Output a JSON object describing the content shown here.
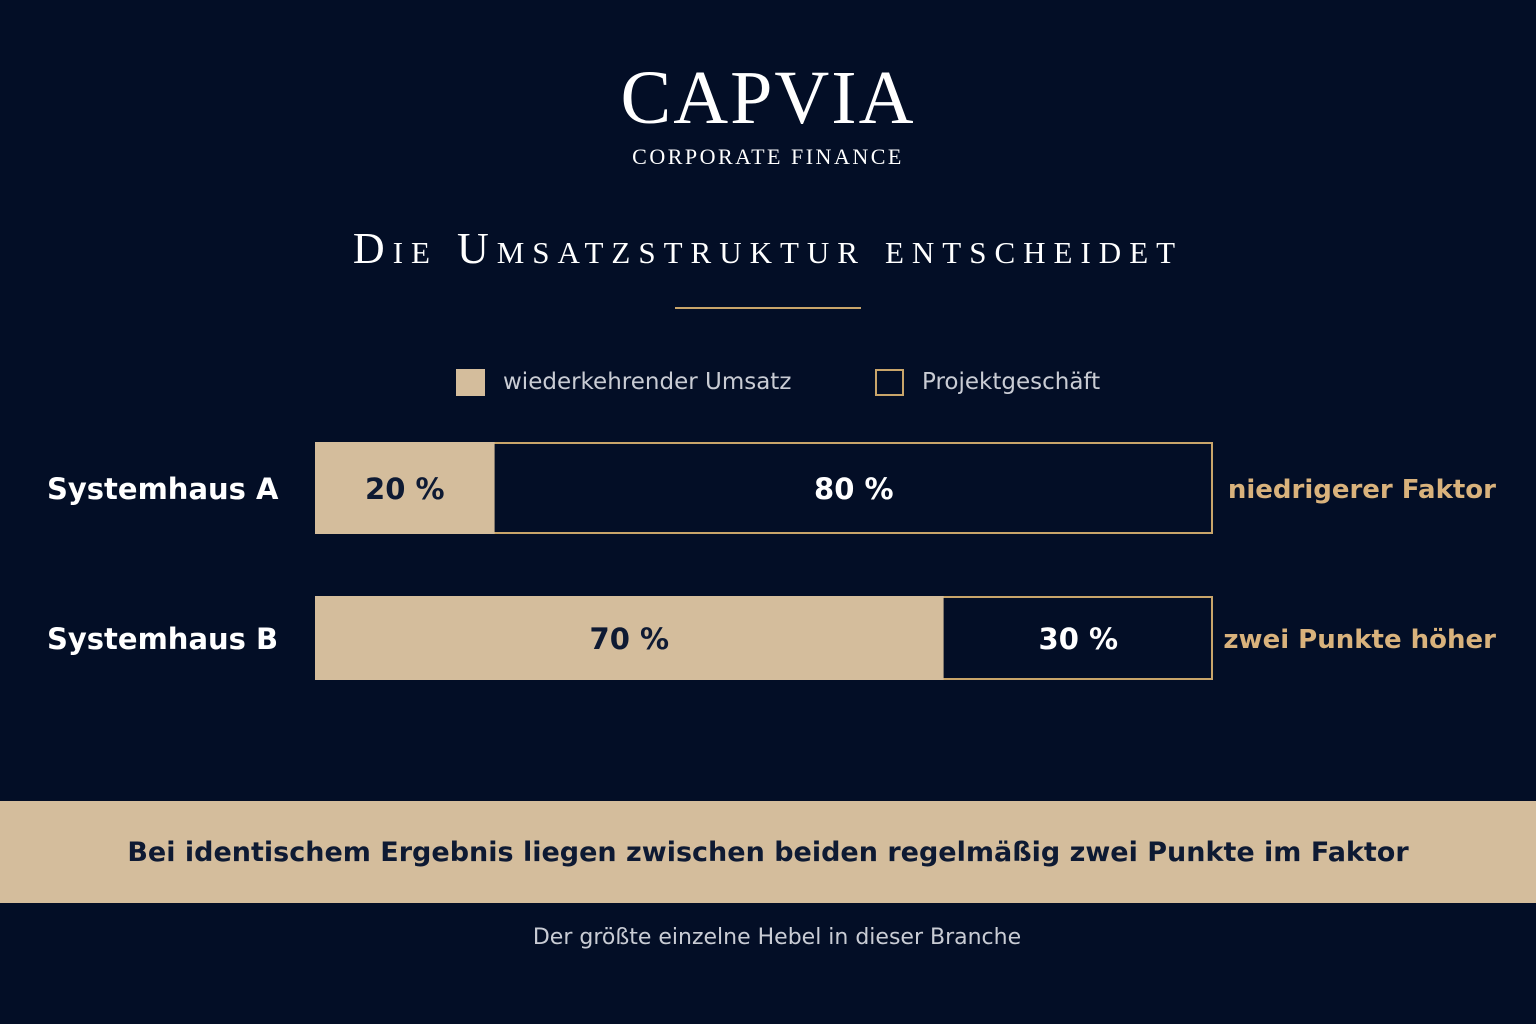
{
  "brand": {
    "name": "CAPVIA",
    "subtitle": "CORPORATE FINANCE"
  },
  "colors": {
    "background": "#030e26",
    "recurring": "#d4bd9c",
    "accent": "#c9a56a",
    "label_accent": "#d9b27c",
    "dark_text": "#0e1a33"
  },
  "chart_data": {
    "type": "bar",
    "orientation": "horizontal",
    "stacked": true,
    "title": "Die Umsatzstruktur entscheidet",
    "categories": [
      "Systemhaus A",
      "Systemhaus B"
    ],
    "series": [
      {
        "name": "wiederkehrender Umsatz",
        "values": [
          20,
          70
        ],
        "labels": [
          "20 %",
          "70 %"
        ]
      },
      {
        "name": "Projektgeschäft",
        "values": [
          80,
          30
        ],
        "labels": [
          "80 %",
          "30 %"
        ]
      }
    ],
    "annotations": [
      "niedrigerer Faktor",
      "zwei Punkte höher"
    ],
    "xlim": [
      0,
      100
    ],
    "legend": "top-center",
    "grid": false
  },
  "footer": {
    "statement": "Bei identischem Ergebnis liegen zwischen beiden regelmäßig zwei Punkte im Faktor",
    "note": "Der größte einzelne Hebel in dieser Branche"
  }
}
